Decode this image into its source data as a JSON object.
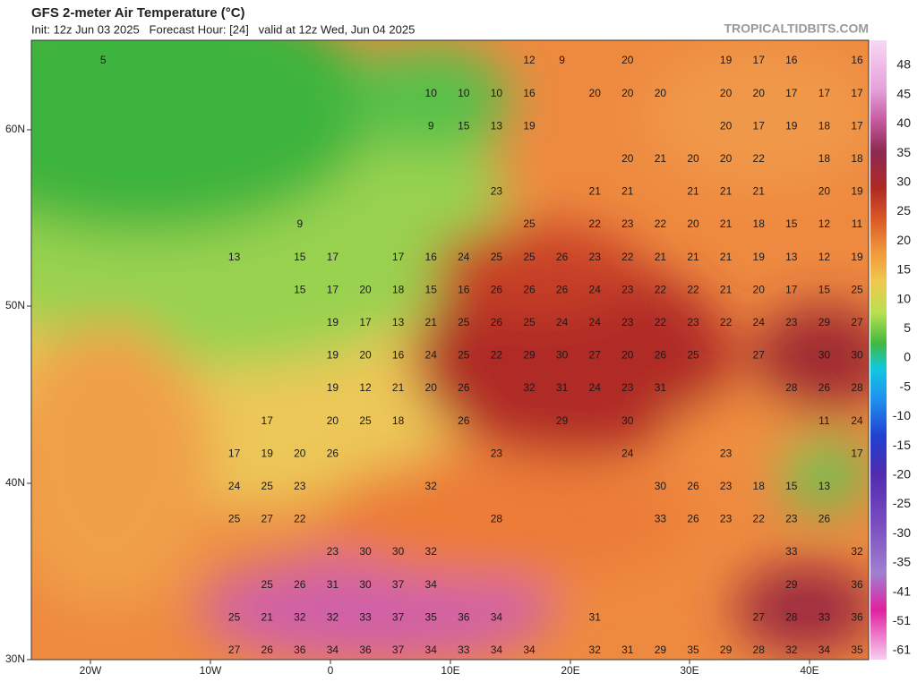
{
  "header": {
    "title": "GFS 2-meter Air Temperature (°C)",
    "init": "Init: 12z Jun 03 2025   Forecast Hour: [24]   valid at 12z Wed, Jun 04 2025",
    "watermark": "TROPICALTIDBITS.COM"
  },
  "map": {
    "lat_labels": [
      "60N",
      "50N",
      "40N",
      "30N"
    ],
    "lon_labels": [
      "20W",
      "10W",
      "0",
      "10E",
      "20E",
      "30E",
      "40E"
    ],
    "grid_rows": [
      [
        null,
        null,
        5,
        null,
        null,
        null,
        null,
        null,
        null,
        null,
        null,
        null,
        null,
        null,
        null,
        12,
        9,
        null,
        20,
        null,
        null,
        19,
        17,
        16,
        null,
        16
      ],
      [
        null,
        null,
        null,
        null,
        null,
        null,
        null,
        null,
        null,
        null,
        null,
        null,
        10,
        10,
        10,
        16,
        null,
        20,
        20,
        20,
        null,
        20,
        20,
        17,
        17,
        17
      ],
      [
        null,
        null,
        null,
        null,
        null,
        null,
        null,
        null,
        null,
        null,
        null,
        null,
        9,
        15,
        13,
        19,
        null,
        null,
        null,
        null,
        null,
        20,
        17,
        19,
        18,
        17
      ],
      [
        null,
        null,
        null,
        null,
        null,
        null,
        null,
        null,
        null,
        null,
        null,
        null,
        null,
        null,
        null,
        null,
        null,
        null,
        20,
        21,
        20,
        20,
        22,
        null,
        18,
        18
      ],
      [
        null,
        null,
        null,
        null,
        null,
        null,
        null,
        null,
        null,
        null,
        null,
        null,
        null,
        null,
        23,
        null,
        null,
        21,
        21,
        null,
        21,
        21,
        21,
        null,
        20,
        19
      ],
      [
        null,
        null,
        null,
        null,
        null,
        null,
        null,
        null,
        9,
        null,
        null,
        null,
        null,
        null,
        null,
        25,
        null,
        22,
        23,
        22,
        20,
        21,
        18,
        15,
        12,
        11
      ],
      [
        null,
        null,
        null,
        null,
        null,
        null,
        13,
        null,
        15,
        17,
        null,
        17,
        16,
        24,
        25,
        25,
        26,
        23,
        22,
        21,
        21,
        21,
        19,
        13,
        12,
        19
      ],
      [
        null,
        null,
        null,
        null,
        null,
        null,
        null,
        null,
        15,
        17,
        20,
        18,
        15,
        16,
        26,
        26,
        26,
        24,
        23,
        22,
        22,
        21,
        20,
        17,
        15,
        25
      ],
      [
        null,
        null,
        null,
        null,
        null,
        null,
        null,
        null,
        null,
        19,
        17,
        13,
        21,
        25,
        26,
        25,
        24,
        24,
        23,
        22,
        23,
        22,
        24,
        23,
        29,
        27
      ],
      [
        null,
        null,
        null,
        null,
        null,
        null,
        null,
        null,
        null,
        19,
        20,
        16,
        24,
        25,
        22,
        29,
        30,
        27,
        20,
        26,
        25,
        null,
        27,
        null,
        30,
        30
      ],
      [
        null,
        null,
        null,
        null,
        null,
        null,
        null,
        null,
        null,
        19,
        12,
        21,
        20,
        26,
        null,
        32,
        31,
        24,
        23,
        31,
        null,
        null,
        null,
        28,
        26,
        28
      ],
      [
        null,
        null,
        null,
        null,
        null,
        null,
        null,
        17,
        null,
        20,
        25,
        18,
        null,
        26,
        null,
        null,
        29,
        null,
        30,
        null,
        null,
        null,
        null,
        null,
        11,
        24
      ],
      [
        null,
        null,
        null,
        null,
        null,
        null,
        17,
        19,
        20,
        26,
        null,
        null,
        null,
        null,
        23,
        null,
        null,
        null,
        24,
        null,
        null,
        23,
        null,
        null,
        null,
        17
      ],
      [
        null,
        null,
        null,
        null,
        null,
        null,
        24,
        25,
        23,
        null,
        null,
        null,
        32,
        null,
        null,
        null,
        null,
        null,
        null,
        30,
        26,
        23,
        18,
        15,
        13,
        null
      ],
      [
        null,
        null,
        null,
        null,
        null,
        null,
        25,
        27,
        22,
        null,
        null,
        null,
        null,
        null,
        28,
        null,
        null,
        null,
        null,
        33,
        26,
        23,
        22,
        23,
        26,
        null
      ],
      [
        null,
        null,
        null,
        null,
        null,
        null,
        null,
        null,
        null,
        23,
        30,
        30,
        32,
        null,
        null,
        null,
        null,
        null,
        null,
        null,
        null,
        null,
        null,
        33,
        null,
        32
      ],
      [
        null,
        null,
        null,
        null,
        null,
        null,
        null,
        25,
        26,
        31,
        30,
        37,
        34,
        null,
        null,
        null,
        null,
        null,
        null,
        null,
        null,
        null,
        null,
        29,
        null,
        36
      ],
      [
        null,
        null,
        null,
        null,
        null,
        null,
        25,
        21,
        32,
        32,
        33,
        37,
        35,
        36,
        34,
        null,
        null,
        31,
        null,
        null,
        null,
        null,
        27,
        28,
        33,
        36
      ],
      [
        null,
        null,
        null,
        null,
        null,
        null,
        27,
        26,
        36,
        34,
        36,
        37,
        34,
        33,
        34,
        34,
        null,
        32,
        31,
        29,
        35,
        29,
        28,
        32,
        34,
        35
      ]
    ]
  },
  "colorbar": {
    "labels": [
      48,
      45,
      40,
      35,
      30,
      25,
      20,
      15,
      10,
      5,
      0,
      -5,
      -10,
      -15,
      -20,
      -25,
      -30,
      -35,
      -41,
      -51,
      -61
    ]
  }
}
